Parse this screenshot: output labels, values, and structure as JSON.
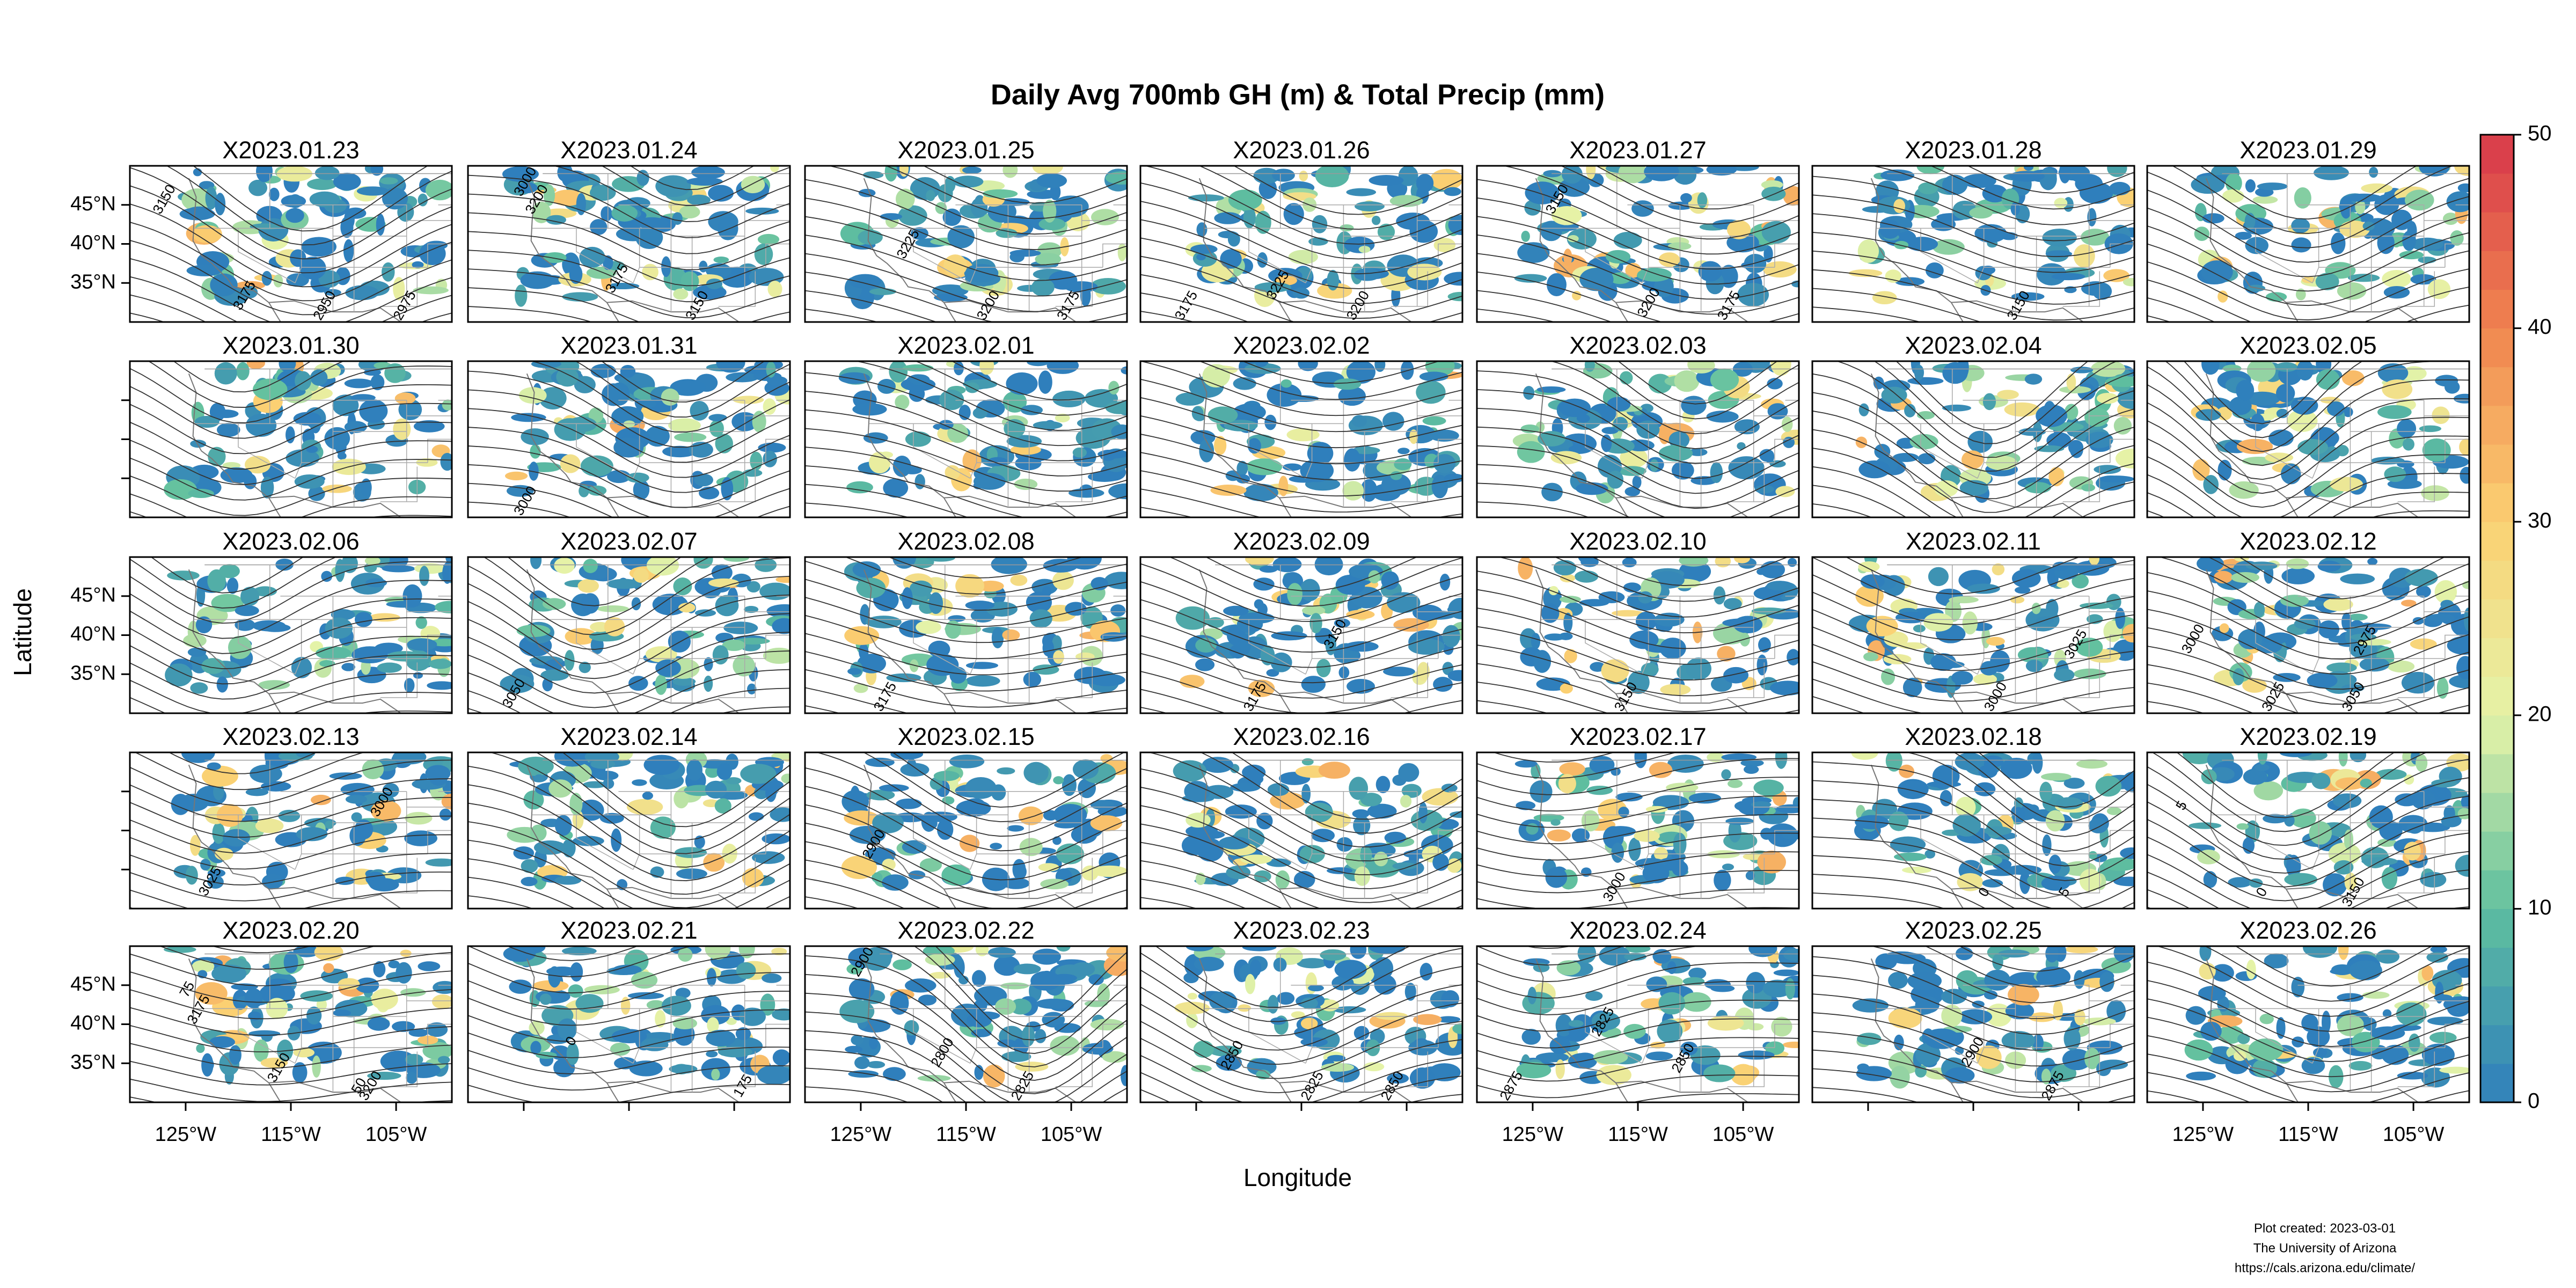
{
  "title": "Daily Avg 700mb GH (m) & Total Precip (mm)",
  "x_axis": {
    "label": "Longitude",
    "lim": [
      -130.3,
      -99.7
    ],
    "ticks": [
      {
        "value": -125,
        "label": "125°W"
      },
      {
        "value": -115,
        "label": "115°W"
      },
      {
        "value": -105,
        "label": "105°W"
      }
    ]
  },
  "y_axis": {
    "label": "Latitude",
    "lim": [
      30,
      50
    ],
    "ticks": [
      {
        "value": 35,
        "label": "35°N"
      },
      {
        "value": 40,
        "label": "40°N"
      },
      {
        "value": 45,
        "label": "45°N"
      }
    ]
  },
  "panels": [
    {
      "title": "X2023.01.23",
      "contour_labels": [
        "3150",
        "3175",
        "2950",
        "2975"
      ]
    },
    {
      "title": "X2023.01.24",
      "contour_labels": [
        "3200",
        "3175",
        "3150",
        "3000"
      ]
    },
    {
      "title": "X2023.01.25",
      "contour_labels": [
        "3225",
        "3200",
        "3175"
      ]
    },
    {
      "title": "X2023.01.26",
      "contour_labels": [
        "3225",
        "3200",
        "3175"
      ]
    },
    {
      "title": "X2023.01.27",
      "contour_labels": [
        "3200",
        "3175",
        "3150"
      ]
    },
    {
      "title": "X2023.01.28",
      "contour_labels": [
        "3150"
      ]
    },
    {
      "title": "X2023.01.29",
      "contour_labels": []
    },
    {
      "title": "X2023.01.30",
      "contour_labels": []
    },
    {
      "title": "X2023.01.31",
      "contour_labels": [
        "3000"
      ]
    },
    {
      "title": "X2023.02.01",
      "contour_labels": []
    },
    {
      "title": "X2023.02.02",
      "contour_labels": []
    },
    {
      "title": "X2023.02.03",
      "contour_labels": []
    },
    {
      "title": "X2023.02.04",
      "contour_labels": []
    },
    {
      "title": "X2023.02.05",
      "contour_labels": []
    },
    {
      "title": "X2023.02.06",
      "contour_labels": []
    },
    {
      "title": "X2023.02.07",
      "contour_labels": [
        "3050"
      ]
    },
    {
      "title": "X2023.02.08",
      "contour_labels": [
        "3175"
      ]
    },
    {
      "title": "X2023.02.09",
      "contour_labels": [
        "3175",
        "3150"
      ]
    },
    {
      "title": "X2023.02.10",
      "contour_labels": [
        "3150"
      ]
    },
    {
      "title": "X2023.02.11",
      "contour_labels": [
        "3000",
        "3025"
      ]
    },
    {
      "title": "X2023.02.12",
      "contour_labels": [
        "2975",
        "3000",
        "3025",
        "3050"
      ]
    },
    {
      "title": "X2023.02.13",
      "contour_labels": [
        "3000",
        "3025"
      ]
    },
    {
      "title": "X2023.02.14",
      "contour_labels": []
    },
    {
      "title": "X2023.02.15",
      "contour_labels": [
        "2900"
      ]
    },
    {
      "title": "X2023.02.16",
      "contour_labels": []
    },
    {
      "title": "X2023.02.17",
      "contour_labels": [
        "3000"
      ]
    },
    {
      "title": "X2023.02.18",
      "contour_labels": [
        "0",
        "5"
      ]
    },
    {
      "title": "X2023.02.19",
      "contour_labels": [
        "3150",
        "5",
        "0"
      ]
    },
    {
      "title": "X2023.02.20",
      "contour_labels": [
        "3200",
        "3175",
        "3150",
        "50",
        "75"
      ]
    },
    {
      "title": "X2023.02.21",
      "contour_labels": [
        "175",
        "0"
      ]
    },
    {
      "title": "X2023.02.22",
      "contour_labels": [
        "2900",
        "2800",
        "2825"
      ]
    },
    {
      "title": "X2023.02.23",
      "contour_labels": [
        "2850",
        "2825",
        "2850"
      ]
    },
    {
      "title": "X2023.02.24",
      "contour_labels": [
        "2825",
        "2850",
        "2875"
      ]
    },
    {
      "title": "X2023.02.25",
      "contour_labels": [
        "2900",
        "2875"
      ]
    },
    {
      "title": "X2023.02.26",
      "contour_labels": []
    }
  ],
  "colorbar": {
    "lim": [
      0,
      50
    ],
    "ticks": [
      0,
      10,
      20,
      30,
      40,
      50
    ],
    "colors": [
      "#2f7fbc",
      "#5fbf9f",
      "#e5f3a8",
      "#fbd072",
      "#f0854f",
      "#d7384a"
    ]
  },
  "footer": [
    "Plot created: 2023-03-01",
    "The University of Arizona",
    "https://cals.arizona.edu/climate/"
  ]
}
